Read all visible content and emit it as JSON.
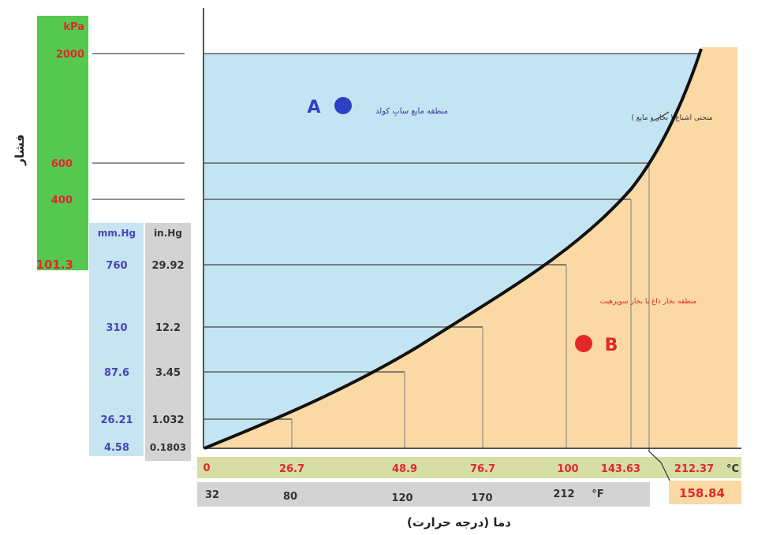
{
  "diagram": {
    "y_axis_title": "فشار",
    "x_axis_title": "دما (درجه حرارت)",
    "liquid_region": {
      "marker": "A",
      "label": "منطقه مایع سابِ کولد"
    },
    "vapor_region": {
      "marker": "B",
      "label": "منطقه بخار داغ یا بخار سوپرهیت"
    },
    "curve_label": "منحنی اشباع ( بخار و مایع )",
    "colors": {
      "liquid": "#c3e4f2",
      "vapor": "#fad9a4",
      "kpa_bar": "#56c84f",
      "mmhg_bar": "#c7e4f1",
      "inhg_bar": "#d3d3d3",
      "celsius_bar": "#d7dea3",
      "fahrenheit_bar": "#d3d3d3",
      "red_text": "#e0282c",
      "blue_text": "#4447b6",
      "marker_a": "#2e3fc6",
      "marker_b": "#e42727"
    },
    "kpa": {
      "unit": "kPa",
      "ticks": [
        "2000",
        "600",
        "400",
        "101.3"
      ]
    },
    "mmhg": {
      "unit": "mm.Hg",
      "ticks": [
        "760",
        "310",
        "87.6",
        "26.21",
        "4.58"
      ]
    },
    "inhg": {
      "unit": "in.Hg",
      "ticks": [
        "29.92",
        "12.2",
        "3.45",
        "1.032",
        "0.1803"
      ]
    },
    "celsius": {
      "unit": "°C",
      "ticks": [
        "0",
        "26.7",
        "48.9",
        "76.7",
        "100",
        "143.63",
        "212.37"
      ]
    },
    "fahrenheit": {
      "unit": "°F",
      "ticks": [
        "32",
        "80",
        "120",
        "170",
        "212"
      ]
    },
    "extra_temp": "158.84"
  }
}
